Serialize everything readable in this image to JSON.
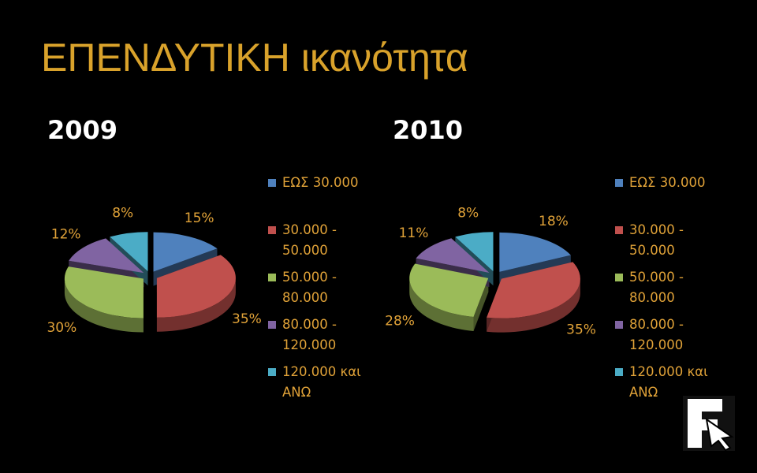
{
  "title": "ΕΠΕΝΔΥΤΙΚΗ ικανότητα",
  "chart_data": [
    {
      "type": "pie",
      "title": "2009",
      "categories": [
        "ΕΩΣ 30.000",
        "30.000 - 50.000",
        "50.000 - 80.000",
        "80.000 - 120.000",
        "120.000 και ΑΝΩ"
      ],
      "values": [
        15,
        35,
        30,
        12,
        8
      ],
      "value_labels": [
        "15%",
        "35%",
        "30%",
        "12%",
        "8%"
      ],
      "colors": [
        "#4f81bd",
        "#c0504d",
        "#9bbb59",
        "#8064a2",
        "#4bacc6"
      ],
      "legend": "right"
    },
    {
      "type": "pie",
      "title": "2010",
      "categories": [
        "ΕΩΣ 30.000",
        "30.000 - 50.000",
        "50.000 - 80.000",
        "80.000 - 120.000",
        "120.000 και ΑΝΩ"
      ],
      "values": [
        18,
        35,
        28,
        11,
        8
      ],
      "value_labels": [
        "18%",
        "35%",
        "28%",
        "11%",
        "8%"
      ],
      "colors": [
        "#4f81bd",
        "#c0504d",
        "#9bbb59",
        "#8064a2",
        "#4bacc6"
      ],
      "legend": "right"
    }
  ]
}
